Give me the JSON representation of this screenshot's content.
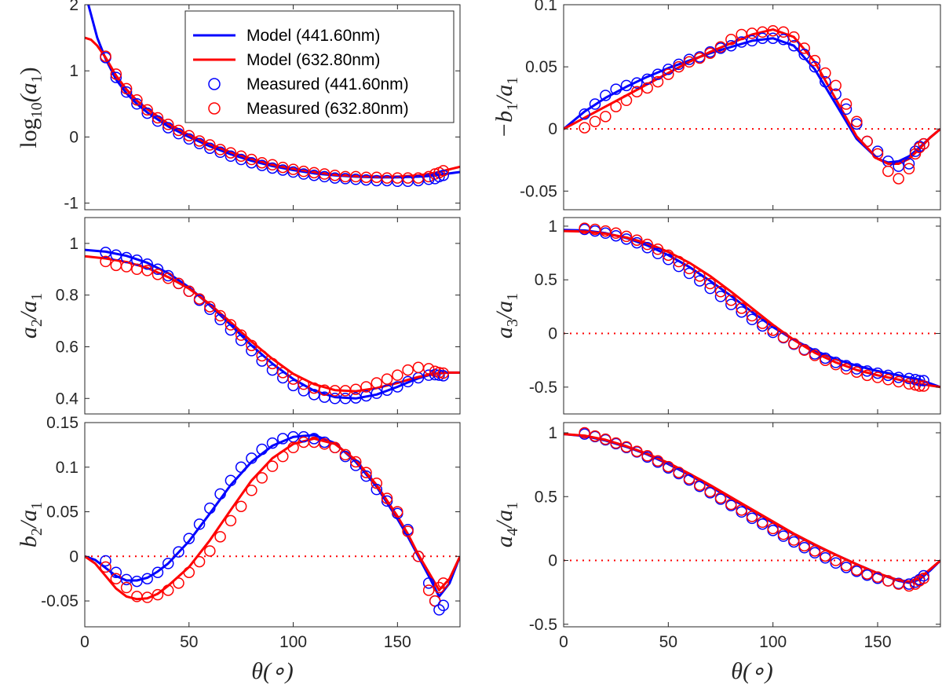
{
  "colors": {
    "series_441": "#0000ff",
    "series_632": "#ff0000",
    "zero_line": "#ff0000",
    "axes": "#262626"
  },
  "xlabel": "θ(∘)",
  "legend": {
    "placement": "top-right of first panel",
    "entries": [
      "Model (441.60nm)",
      "Model (632.80nm)",
      "Measured (441.60nm)",
      "Measured (632.80nm)"
    ]
  },
  "chart_data": [
    {
      "type": "line",
      "ylabel": "log10(a1)",
      "xlim": [
        0,
        180
      ],
      "ylim": [
        -1.1,
        2
      ],
      "xticks": [
        0,
        50,
        100,
        150
      ],
      "yticks": [
        -1,
        0,
        1,
        2
      ],
      "yticklabels": [
        "-1",
        "0",
        "1",
        "2"
      ],
      "zero_line": false,
      "model_x": [
        0,
        3,
        6,
        10,
        15,
        20,
        25,
        30,
        40,
        50,
        60,
        70,
        80,
        90,
        100,
        110,
        120,
        130,
        140,
        150,
        160,
        165,
        170,
        175,
        180
      ],
      "model_441": [
        2.2,
        1.85,
        1.5,
        1.18,
        0.87,
        0.66,
        0.5,
        0.37,
        0.16,
        0.0,
        -0.14,
        -0.26,
        -0.36,
        -0.44,
        -0.5,
        -0.55,
        -0.58,
        -0.6,
        -0.61,
        -0.61,
        -0.6,
        -0.59,
        -0.57,
        -0.55,
        -0.53
      ],
      "model_632": [
        1.5,
        1.47,
        1.38,
        1.2,
        0.93,
        0.72,
        0.55,
        0.42,
        0.2,
        0.03,
        -0.11,
        -0.23,
        -0.33,
        -0.42,
        -0.48,
        -0.53,
        -0.57,
        -0.59,
        -0.6,
        -0.6,
        -0.58,
        -0.56,
        -0.53,
        -0.49,
        -0.45
      ],
      "measured_x": [
        10,
        15,
        20,
        25,
        30,
        35,
        40,
        45,
        50,
        55,
        60,
        65,
        70,
        75,
        80,
        85,
        90,
        95,
        100,
        105,
        110,
        115,
        120,
        125,
        130,
        135,
        140,
        145,
        150,
        155,
        160,
        165,
        168,
        170,
        172
      ],
      "measured_441": [
        1.2,
        0.9,
        0.68,
        0.5,
        0.36,
        0.24,
        0.14,
        0.05,
        -0.03,
        -0.1,
        -0.17,
        -0.23,
        -0.29,
        -0.34,
        -0.39,
        -0.43,
        -0.47,
        -0.5,
        -0.53,
        -0.56,
        -0.58,
        -0.6,
        -0.62,
        -0.63,
        -0.64,
        -0.65,
        -0.66,
        -0.66,
        -0.67,
        -0.67,
        -0.66,
        -0.64,
        -0.63,
        -0.6,
        -0.58
      ],
      "measured_632": [
        1.22,
        0.95,
        0.73,
        0.56,
        0.41,
        0.29,
        0.19,
        0.1,
        0.02,
        -0.06,
        -0.12,
        -0.19,
        -0.24,
        -0.29,
        -0.34,
        -0.39,
        -0.42,
        -0.46,
        -0.49,
        -0.52,
        -0.54,
        -0.56,
        -0.58,
        -0.6,
        -0.6,
        -0.61,
        -0.61,
        -0.62,
        -0.62,
        -0.62,
        -0.62,
        -0.6,
        -0.56,
        -0.54,
        -0.51
      ]
    },
    {
      "type": "line",
      "ylabel": "−b1/a1",
      "xlim": [
        0,
        180
      ],
      "ylim": [
        -0.065,
        0.1
      ],
      "xticks": [
        0,
        50,
        100,
        150
      ],
      "yticks": [
        -0.05,
        0,
        0.05,
        0.1
      ],
      "yticklabels": [
        "-0.05",
        "0",
        "0.05",
        "0.1"
      ],
      "zero_line": true,
      "model_x": [
        0,
        10,
        20,
        30,
        40,
        50,
        60,
        70,
        80,
        90,
        100,
        110,
        120,
        130,
        140,
        150,
        155,
        160,
        165,
        170,
        175,
        180
      ],
      "model_441": [
        0.0,
        0.014,
        0.025,
        0.034,
        0.042,
        0.049,
        0.055,
        0.061,
        0.066,
        0.071,
        0.073,
        0.067,
        0.048,
        0.02,
        -0.008,
        -0.024,
        -0.027,
        -0.026,
        -0.022,
        -0.015,
        -0.007,
        0.0
      ],
      "model_632": [
        0.0,
        0.009,
        0.018,
        0.027,
        0.036,
        0.045,
        0.054,
        0.062,
        0.069,
        0.076,
        0.08,
        0.074,
        0.054,
        0.024,
        -0.006,
        -0.024,
        -0.028,
        -0.028,
        -0.024,
        -0.016,
        -0.007,
        0.0
      ],
      "measured_x": [
        10,
        15,
        20,
        25,
        30,
        35,
        40,
        45,
        50,
        55,
        60,
        65,
        70,
        75,
        80,
        85,
        90,
        95,
        100,
        105,
        110,
        115,
        120,
        125,
        130,
        135,
        140,
        145,
        150,
        155,
        160,
        165,
        168,
        170,
        172
      ],
      "measured_441": [
        0.012,
        0.02,
        0.027,
        0.032,
        0.035,
        0.037,
        0.04,
        0.044,
        0.048,
        0.052,
        0.056,
        0.058,
        0.062,
        0.065,
        0.067,
        0.07,
        0.071,
        0.073,
        0.073,
        0.072,
        0.067,
        0.06,
        0.05,
        0.038,
        0.028,
        0.016,
        0.004,
        -0.01,
        -0.018,
        -0.026,
        -0.03,
        -0.028,
        -0.018,
        -0.014,
        -0.012
      ],
      "measured_632": [
        0.001,
        0.006,
        0.01,
        0.018,
        0.023,
        0.03,
        0.033,
        0.038,
        0.044,
        0.05,
        0.054,
        0.057,
        0.061,
        0.066,
        0.072,
        0.076,
        0.077,
        0.078,
        0.079,
        0.078,
        0.074,
        0.065,
        0.055,
        0.045,
        0.035,
        0.02,
        0.006,
        -0.01,
        -0.02,
        -0.034,
        -0.04,
        -0.032,
        -0.02,
        -0.015,
        -0.012
      ]
    },
    {
      "type": "line",
      "ylabel": "a2/a1",
      "xlim": [
        0,
        180
      ],
      "ylim": [
        0.34,
        1.1
      ],
      "xticks": [
        0,
        50,
        100,
        150
      ],
      "yticks": [
        0.4,
        0.6,
        0.8,
        1
      ],
      "yticklabels": [
        "0.4",
        "0.6",
        "0.8",
        "1"
      ],
      "zero_line": false,
      "model_x": [
        0,
        10,
        20,
        30,
        40,
        50,
        60,
        70,
        80,
        90,
        100,
        110,
        120,
        130,
        140,
        150,
        155,
        160,
        165,
        170,
        175,
        180
      ],
      "model_441": [
        0.975,
        0.968,
        0.952,
        0.925,
        0.885,
        0.83,
        0.76,
        0.685,
        0.605,
        0.535,
        0.475,
        0.43,
        0.405,
        0.4,
        0.415,
        0.445,
        0.462,
        0.478,
        0.49,
        0.497,
        0.5,
        0.5
      ],
      "model_632": [
        0.95,
        0.942,
        0.928,
        0.905,
        0.87,
        0.825,
        0.765,
        0.695,
        0.62,
        0.553,
        0.495,
        0.455,
        0.432,
        0.428,
        0.44,
        0.46,
        0.472,
        0.483,
        0.492,
        0.498,
        0.5,
        0.5
      ],
      "measured_x": [
        10,
        15,
        20,
        25,
        30,
        35,
        40,
        45,
        50,
        55,
        60,
        65,
        70,
        75,
        80,
        85,
        90,
        95,
        100,
        105,
        110,
        115,
        120,
        125,
        130,
        135,
        140,
        145,
        150,
        155,
        160,
        165,
        168,
        170,
        172
      ],
      "measured_441": [
        0.965,
        0.955,
        0.945,
        0.935,
        0.92,
        0.9,
        0.875,
        0.845,
        0.815,
        0.78,
        0.745,
        0.705,
        0.665,
        0.625,
        0.585,
        0.545,
        0.51,
        0.48,
        0.45,
        0.43,
        0.415,
        0.405,
        0.4,
        0.4,
        0.402,
        0.41,
        0.42,
        0.432,
        0.445,
        0.465,
        0.48,
        0.49,
        0.492,
        0.49,
        0.488
      ],
      "measured_632": [
        0.93,
        0.915,
        0.91,
        0.9,
        0.895,
        0.88,
        0.865,
        0.845,
        0.815,
        0.785,
        0.755,
        0.72,
        0.685,
        0.645,
        0.605,
        0.565,
        0.535,
        0.5,
        0.475,
        0.455,
        0.44,
        0.432,
        0.43,
        0.43,
        0.435,
        0.445,
        0.46,
        0.475,
        0.49,
        0.51,
        0.52,
        0.515,
        0.505,
        0.5,
        0.498
      ]
    },
    {
      "type": "line",
      "ylabel": "a3/a1",
      "xlim": [
        0,
        180
      ],
      "ylim": [
        -0.75,
        1.08
      ],
      "xticks": [
        0,
        50,
        100,
        150
      ],
      "yticks": [
        -0.5,
        0,
        0.5,
        1
      ],
      "yticklabels": [
        "-0.5",
        "0",
        "0.5",
        "1"
      ],
      "zero_line": true,
      "model_x": [
        0,
        10,
        20,
        30,
        40,
        50,
        60,
        70,
        80,
        90,
        100,
        110,
        120,
        130,
        140,
        150,
        160,
        170,
        180
      ],
      "model_441": [
        0.965,
        0.96,
        0.935,
        0.89,
        0.82,
        0.73,
        0.62,
        0.49,
        0.35,
        0.2,
        0.06,
        -0.06,
        -0.16,
        -0.24,
        -0.3,
        -0.35,
        -0.39,
        -0.43,
        -0.5
      ],
      "model_632": [
        0.955,
        0.95,
        0.93,
        0.895,
        0.84,
        0.76,
        0.66,
        0.535,
        0.39,
        0.235,
        0.08,
        -0.06,
        -0.18,
        -0.27,
        -0.34,
        -0.39,
        -0.43,
        -0.47,
        -0.5
      ],
      "measured_x": [
        10,
        15,
        20,
        25,
        30,
        35,
        40,
        45,
        50,
        55,
        60,
        65,
        70,
        75,
        80,
        85,
        90,
        95,
        100,
        105,
        110,
        115,
        120,
        125,
        130,
        135,
        140,
        145,
        150,
        155,
        160,
        165,
        168,
        170,
        172
      ],
      "measured_441": [
        0.97,
        0.955,
        0.935,
        0.91,
        0.88,
        0.845,
        0.8,
        0.745,
        0.69,
        0.625,
        0.56,
        0.49,
        0.42,
        0.345,
        0.27,
        0.2,
        0.13,
        0.07,
        0.01,
        -0.04,
        -0.1,
        -0.15,
        -0.19,
        -0.23,
        -0.27,
        -0.3,
        -0.33,
        -0.35,
        -0.37,
        -0.39,
        -0.41,
        -0.42,
        -0.43,
        -0.44,
        -0.44
      ],
      "measured_632": [
        0.98,
        0.97,
        0.955,
        0.935,
        0.905,
        0.87,
        0.83,
        0.785,
        0.73,
        0.67,
        0.605,
        0.535,
        0.465,
        0.39,
        0.31,
        0.235,
        0.165,
        0.095,
        0.03,
        -0.035,
        -0.095,
        -0.155,
        -0.205,
        -0.25,
        -0.29,
        -0.33,
        -0.36,
        -0.39,
        -0.41,
        -0.43,
        -0.45,
        -0.47,
        -0.48,
        -0.49,
        -0.49
      ]
    },
    {
      "type": "line",
      "ylabel": "b2/a1",
      "xlim": [
        0,
        180
      ],
      "ylim": [
        -0.079,
        0.15
      ],
      "xticks": [
        0,
        50,
        100,
        150
      ],
      "yticks": [
        -0.05,
        0,
        0.05,
        0.1,
        0.15
      ],
      "yticklabels": [
        "-0.05",
        "0",
        "0.05",
        "0.1",
        "0.15"
      ],
      "zero_line": true,
      "model_x": [
        0,
        5,
        10,
        15,
        20,
        25,
        30,
        35,
        40,
        50,
        60,
        70,
        80,
        90,
        100,
        110,
        120,
        130,
        140,
        150,
        155,
        160,
        165,
        170,
        175,
        180
      ],
      "model_441": [
        0.0,
        -0.004,
        -0.013,
        -0.022,
        -0.027,
        -0.027,
        -0.024,
        -0.017,
        -0.008,
        0.017,
        0.048,
        0.08,
        0.106,
        0.124,
        0.134,
        0.136,
        0.127,
        0.106,
        0.078,
        0.042,
        0.022,
        0.0,
        -0.022,
        -0.045,
        -0.03,
        0.0
      ],
      "model_632": [
        0.0,
        -0.008,
        -0.022,
        -0.036,
        -0.045,
        -0.048,
        -0.047,
        -0.042,
        -0.033,
        -0.012,
        0.018,
        0.052,
        0.085,
        0.11,
        0.126,
        0.132,
        0.126,
        0.108,
        0.08,
        0.045,
        0.025,
        0.002,
        -0.018,
        -0.038,
        -0.025,
        0.0
      ],
      "measured_x": [
        10,
        15,
        20,
        25,
        30,
        35,
        40,
        45,
        50,
        55,
        60,
        65,
        70,
        75,
        80,
        85,
        90,
        95,
        100,
        105,
        110,
        115,
        120,
        125,
        130,
        135,
        140,
        145,
        150,
        155,
        160,
        165,
        168,
        170,
        172
      ],
      "measured_441": [
        -0.005,
        -0.018,
        -0.026,
        -0.028,
        -0.025,
        -0.018,
        -0.008,
        0.005,
        0.02,
        0.036,
        0.054,
        0.07,
        0.085,
        0.1,
        0.11,
        0.12,
        0.127,
        0.132,
        0.134,
        0.134,
        0.132,
        0.128,
        0.122,
        0.112,
        0.102,
        0.09,
        0.075,
        0.062,
        0.048,
        0.03,
        0.0,
        -0.03,
        -0.05,
        -0.06,
        -0.055
      ],
      "measured_632": [
        -0.012,
        -0.025,
        -0.035,
        -0.045,
        -0.046,
        -0.043,
        -0.038,
        -0.03,
        -0.018,
        -0.006,
        0.006,
        0.022,
        0.04,
        0.056,
        0.074,
        0.088,
        0.101,
        0.112,
        0.122,
        0.128,
        0.128,
        0.126,
        0.122,
        0.114,
        0.106,
        0.094,
        0.082,
        0.065,
        0.05,
        0.028,
        0.0,
        -0.038,
        -0.05,
        -0.035,
        -0.03
      ]
    },
    {
      "type": "line",
      "ylabel": "a4/a1",
      "xlim": [
        0,
        180
      ],
      "ylim": [
        -0.52,
        1.08
      ],
      "xticks": [
        0,
        50,
        100,
        150
      ],
      "yticks": [
        -0.5,
        0,
        0.5,
        1
      ],
      "yticklabels": [
        "-0.5",
        "0",
        "0.5",
        "1"
      ],
      "zero_line": true,
      "model_x": [
        0,
        10,
        20,
        30,
        40,
        50,
        60,
        70,
        80,
        90,
        100,
        110,
        120,
        130,
        140,
        150,
        160,
        165,
        170,
        175,
        180
      ],
      "model_441": [
        0.99,
        0.975,
        0.94,
        0.89,
        0.83,
        0.755,
        0.67,
        0.58,
        0.485,
        0.39,
        0.295,
        0.205,
        0.12,
        0.045,
        -0.03,
        -0.1,
        -0.16,
        -0.175,
        -0.15,
        -0.08,
        0.0
      ],
      "model_632": [
        0.99,
        0.978,
        0.945,
        0.895,
        0.835,
        0.765,
        0.68,
        0.59,
        0.495,
        0.4,
        0.305,
        0.21,
        0.125,
        0.045,
        -0.03,
        -0.1,
        -0.155,
        -0.165,
        -0.14,
        -0.07,
        0.0
      ],
      "measured_x": [
        10,
        15,
        20,
        25,
        30,
        35,
        40,
        45,
        50,
        55,
        60,
        65,
        70,
        75,
        80,
        85,
        90,
        95,
        100,
        105,
        110,
        115,
        120,
        125,
        130,
        135,
        140,
        145,
        150,
        155,
        160,
        165,
        168,
        170,
        172
      ],
      "measured_441": [
        0.99,
        0.97,
        0.945,
        0.915,
        0.885,
        0.85,
        0.81,
        0.77,
        0.725,
        0.68,
        0.63,
        0.58,
        0.53,
        0.48,
        0.43,
        0.38,
        0.33,
        0.285,
        0.235,
        0.19,
        0.145,
        0.1,
        0.06,
        0.02,
        -0.02,
        -0.055,
        -0.085,
        -0.115,
        -0.14,
        -0.16,
        -0.18,
        -0.185,
        -0.17,
        -0.15,
        -0.12
      ],
      "measured_632": [
        1.0,
        0.975,
        0.95,
        0.92,
        0.89,
        0.855,
        0.82,
        0.78,
        0.735,
        0.69,
        0.64,
        0.59,
        0.54,
        0.49,
        0.44,
        0.395,
        0.345,
        0.3,
        0.25,
        0.205,
        0.16,
        0.115,
        0.075,
        0.035,
        0.0,
        -0.04,
        -0.075,
        -0.105,
        -0.13,
        -0.16,
        -0.185,
        -0.2,
        -0.185,
        -0.16,
        -0.14
      ]
    }
  ]
}
